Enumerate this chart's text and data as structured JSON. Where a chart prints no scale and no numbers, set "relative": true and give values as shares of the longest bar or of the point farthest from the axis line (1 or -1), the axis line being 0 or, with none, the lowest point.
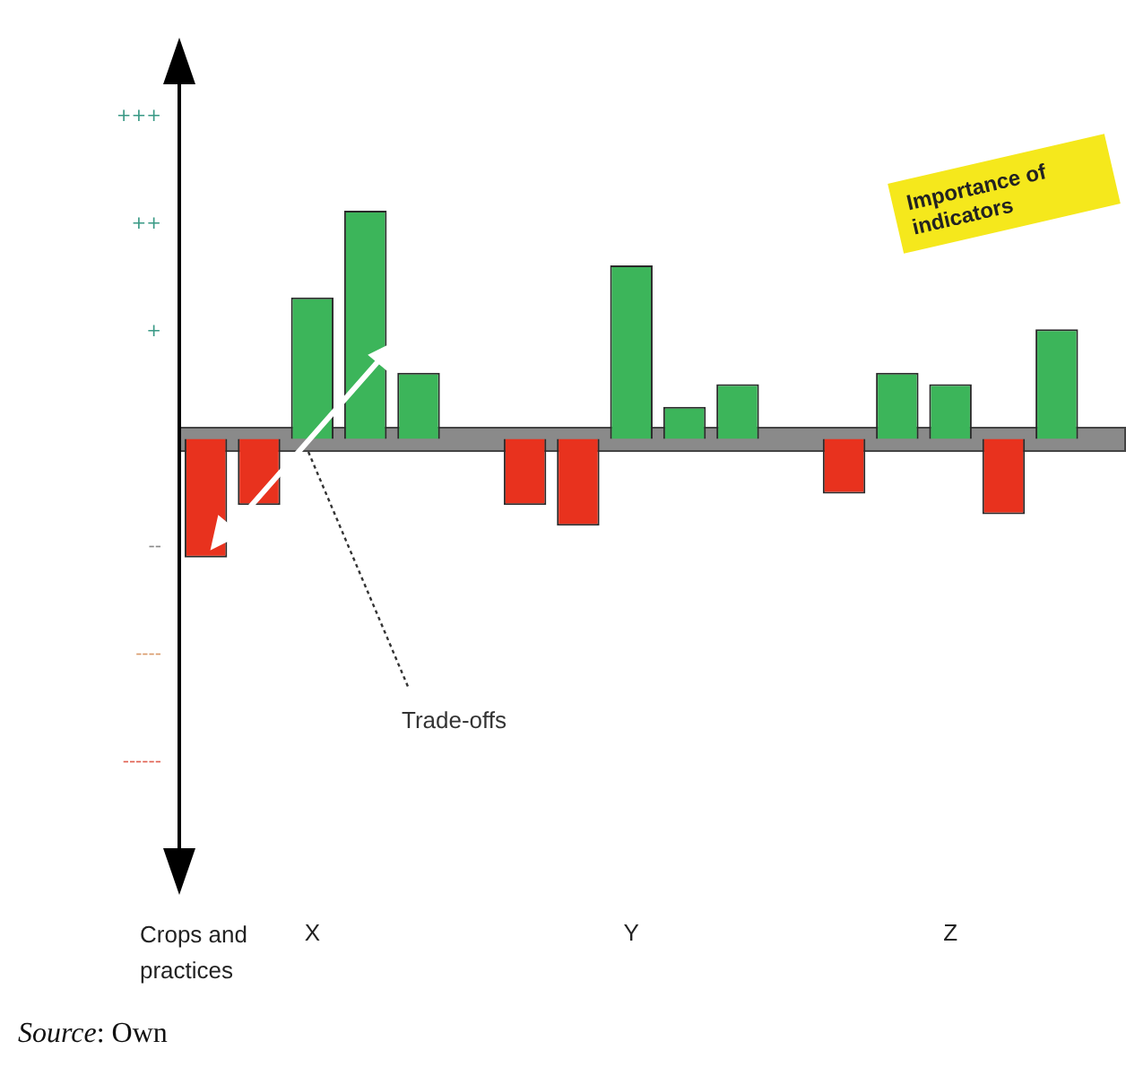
{
  "chart_data": {
    "type": "bar",
    "categories": [
      null,
      null,
      "X",
      null,
      null,
      null,
      null,
      null,
      "Y",
      null,
      null,
      null,
      null,
      null,
      "Z",
      null,
      null
    ],
    "relative": true,
    "values": [
      -0.52,
      -0.29,
      0.62,
      1,
      0.29,
      null,
      -0.29,
      -0.38,
      0.76,
      0.14,
      0.24,
      null,
      -0.24,
      0.29,
      0.24,
      -0.33,
      0.48
    ],
    "colors": [
      "#e8321e",
      "#e8321e",
      "#3cb55a",
      "#3cb55a",
      "#3cb55a",
      "#3cb55a",
      "#e8321e",
      "#e8321e",
      "#3cb55a",
      "#3cb55a",
      "#3cb55a",
      "#3cb55a",
      "#e8321e",
      "#3cb55a",
      "#3cb55a",
      "#e8321e",
      "#3cb55a"
    ],
    "xlabel": "Crops and practices",
    "annotations": [
      "Importance of indicators",
      "Trade-offs",
      "Source: Own",
      "+++",
      "++",
      "+",
      "--",
      "----",
      "------"
    ]
  }
}
